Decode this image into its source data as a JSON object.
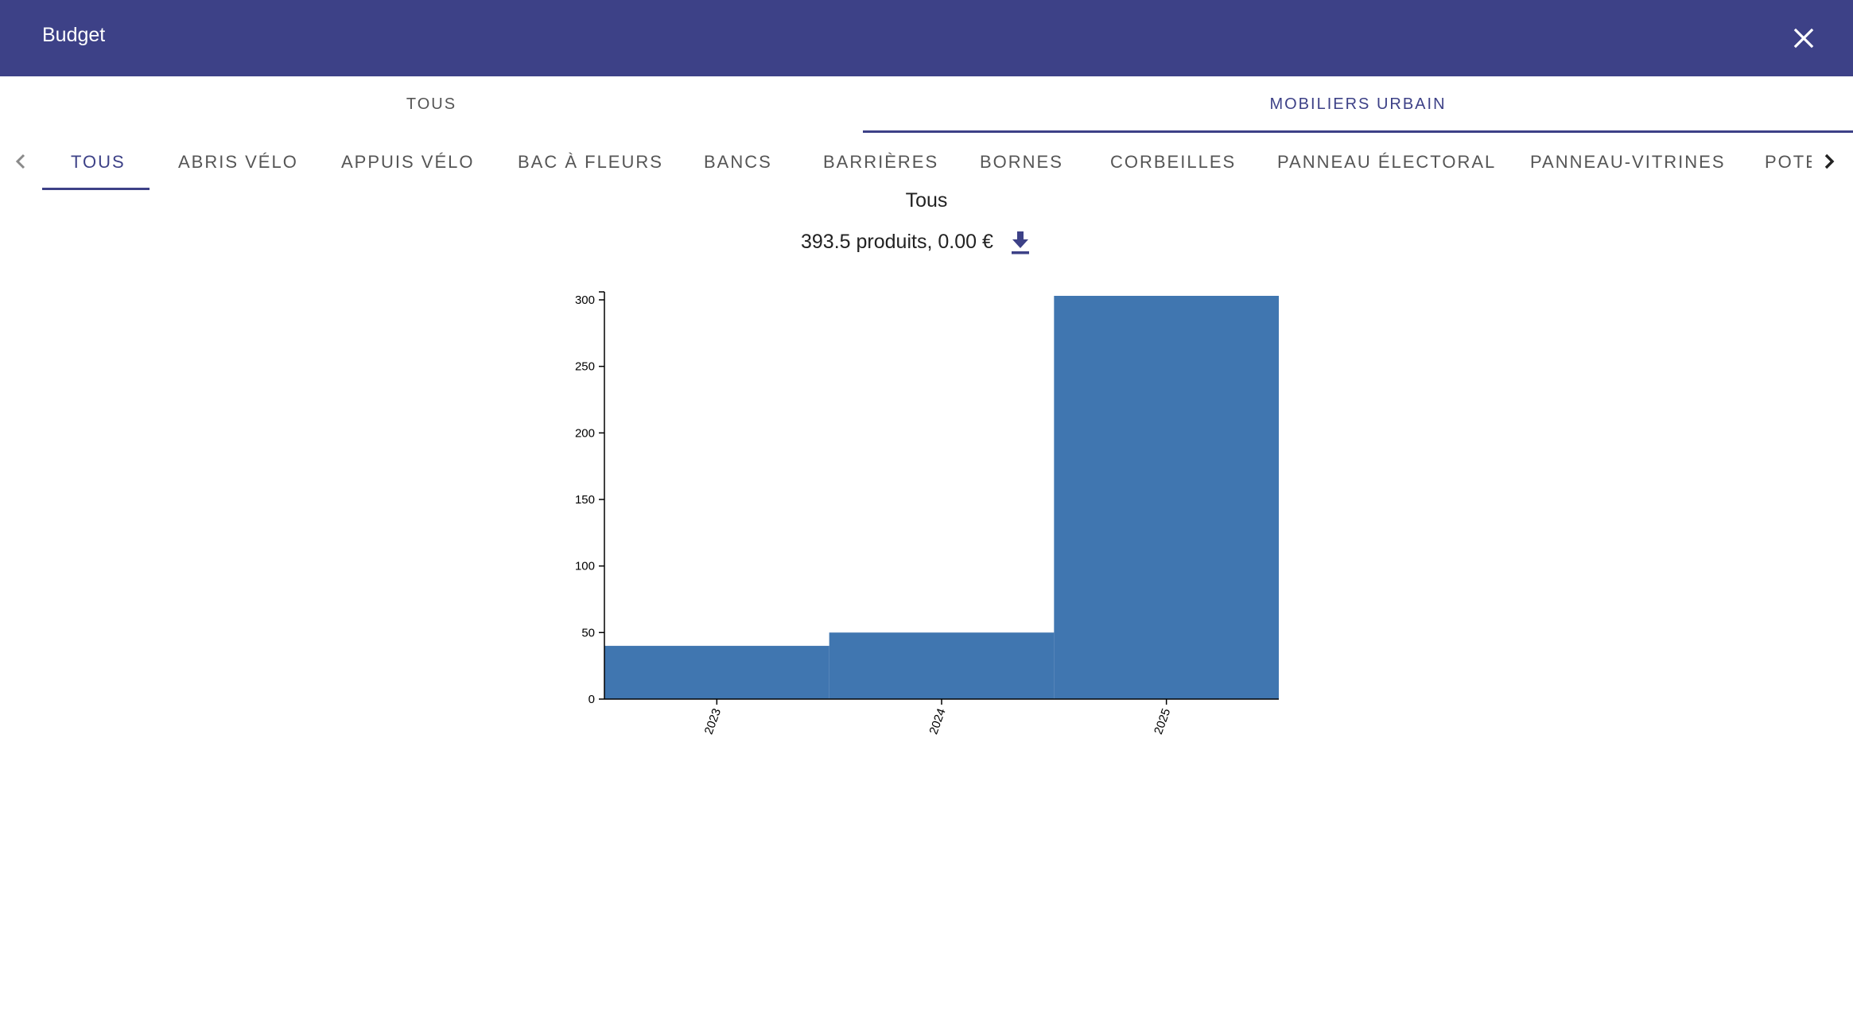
{
  "dialog": {
    "title": "Budget",
    "close_icon": "close-icon"
  },
  "group_tabs": [
    {
      "label": "TOUS",
      "active": false
    },
    {
      "label": "MOBILIERS URBAIN",
      "active": true
    }
  ],
  "category_tabs": [
    {
      "label": "TOUS",
      "active": true
    },
    {
      "label": "ABRIS VÉLO"
    },
    {
      "label": "APPUIS VÉLO"
    },
    {
      "label": "BAC À FLEURS"
    },
    {
      "label": "BANCS"
    },
    {
      "label": "BARRIÈRES"
    },
    {
      "label": "BORNES"
    },
    {
      "label": "CORBEILLES"
    },
    {
      "label": "PANNEAU ÉLECTORAL"
    },
    {
      "label": "PANNEAU-VITRINES"
    },
    {
      "label": "POTE"
    }
  ],
  "scroll_icons": {
    "left": "chevron-left-icon",
    "right": "chevron-right-icon"
  },
  "section": {
    "title": "Tous",
    "summary": "393.5 produits, 0.00 €",
    "download_icon": "download-icon"
  },
  "colors": {
    "accent": "#3d4187",
    "bar": "#4076b0"
  },
  "chart_data": {
    "type": "bar",
    "categories": [
      "2023",
      "2024",
      "2025"
    ],
    "values": [
      40,
      50,
      303
    ],
    "ylim": [
      0,
      300
    ],
    "yticks": [
      0,
      50,
      100,
      150,
      200,
      250,
      300
    ],
    "xlabel": "",
    "ylabel": "",
    "grid": false
  }
}
